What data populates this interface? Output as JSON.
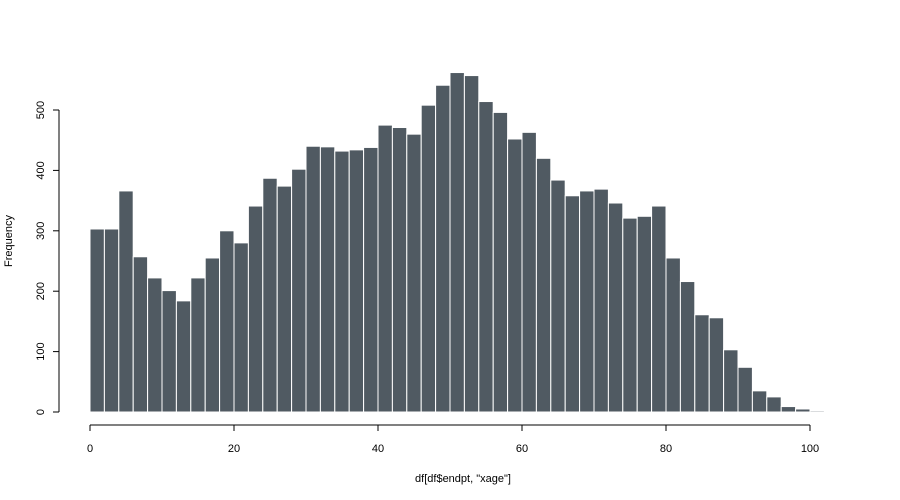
{
  "chart_data": {
    "type": "bar",
    "title": "",
    "xlabel": "df[df$endpt, \"xage\"]",
    "ylabel": "Frequency",
    "bin_width": 2,
    "x_start": 0,
    "xlim": [
      0,
      100
    ],
    "ylim": [
      0,
      500
    ],
    "x_ticks": [
      0,
      20,
      40,
      60,
      80,
      100
    ],
    "y_ticks": [
      0,
      100,
      200,
      300,
      400,
      500
    ],
    "grid": false,
    "values": [
      303,
      303,
      366,
      257,
      222,
      201,
      184,
      222,
      255,
      300,
      280,
      341,
      387,
      374,
      402,
      440,
      439,
      432,
      434,
      438,
      475,
      471,
      460,
      508,
      541,
      562,
      557,
      514,
      496,
      452,
      463,
      420,
      384,
      358,
      366,
      369,
      346,
      321,
      324,
      341,
      255,
      216,
      161,
      156,
      103,
      74,
      35,
      25,
      9,
      5,
      2
    ]
  },
  "colors": {
    "bar_fill": "#505a62",
    "bar_border": "#ffffff"
  }
}
